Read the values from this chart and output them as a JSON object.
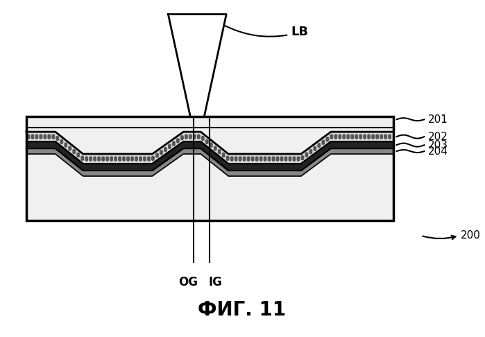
{
  "title": "ФИГ. 11",
  "bg_color": "#ffffff",
  "label_LB": "LB",
  "label_OG": "OG",
  "label_IG": "IG",
  "label_200": "200",
  "label_201": "201",
  "label_202": "202",
  "label_203": "203",
  "label_204": "204"
}
